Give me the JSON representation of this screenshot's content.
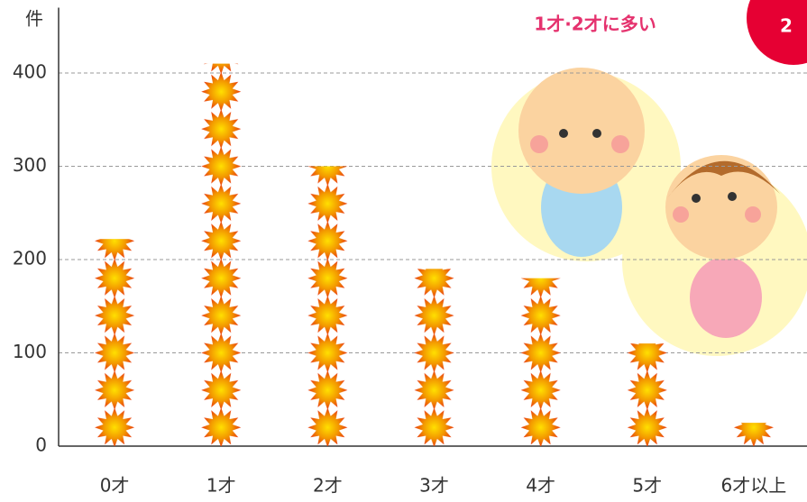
{
  "chart_data": {
    "type": "bar",
    "y_label": "件",
    "annotation": "1才·2才に多い",
    "categories": [
      "0才",
      "1才",
      "2才",
      "3才",
      "4才",
      "5才",
      "6才以上"
    ],
    "values": [
      222,
      410,
      300,
      190,
      180,
      110,
      25
    ],
    "color": "#f39800",
    "ylim": [
      0,
      470
    ],
    "yticks": [
      0,
      100,
      200,
      300,
      400
    ],
    "grid": true
  }
}
